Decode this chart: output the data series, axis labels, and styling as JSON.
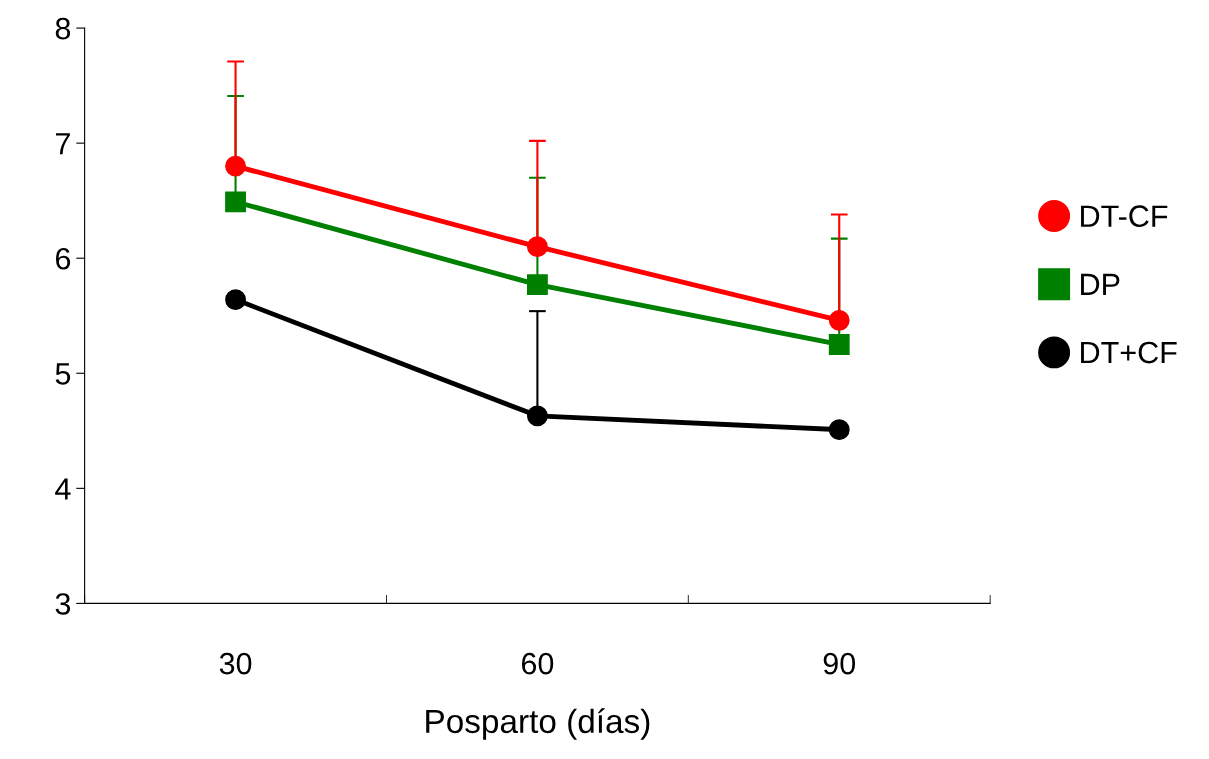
{
  "chart_data": {
    "type": "line",
    "xlabel": "Posparto (días)",
    "categories": [
      "30",
      "60",
      "90"
    ],
    "series": [
      {
        "name": "DT-CF",
        "color": "#ff0000",
        "marker": "circle",
        "values": [
          6.8,
          6.1,
          5.46
        ],
        "errors": [
          [
            6.8,
            7.71
          ],
          [
            6.1,
            7.02
          ],
          [
            5.46,
            6.38
          ]
        ]
      },
      {
        "name": "DP",
        "color": "#008000",
        "marker": "square",
        "values": [
          6.49,
          5.77,
          5.25
        ],
        "errors": [
          [
            6.49,
            7.41
          ],
          [
            5.77,
            6.7
          ],
          [
            5.25,
            6.17
          ]
        ]
      },
      {
        "name": "DT+CF",
        "color": "#000000",
        "marker": "circle",
        "values": [
          5.64,
          4.63,
          4.51
        ],
        "errors": [
          null,
          [
            4.63,
            5.54
          ],
          null
        ]
      }
    ],
    "ylim": [
      3,
      8
    ],
    "yticks": [
      3,
      4,
      5,
      6,
      7,
      8
    ],
    "grid": false,
    "legend": "right"
  }
}
